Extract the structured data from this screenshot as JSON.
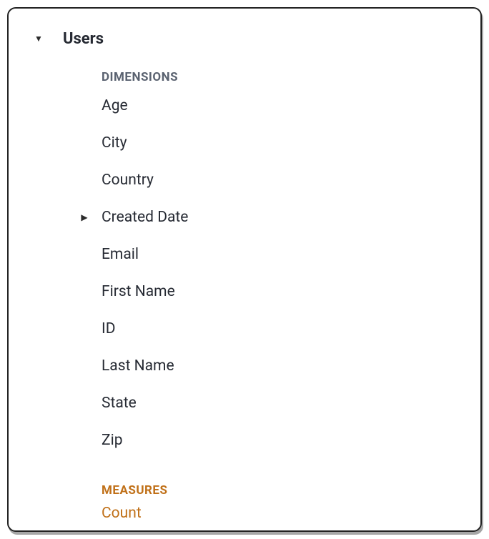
{
  "colors": {
    "border": "#222222",
    "background": "#ffffff",
    "text": "#262a33",
    "dimensions_header": "#5a6270",
    "measures_color": "#c07018"
  },
  "view": {
    "label": "Users",
    "expanded": true
  },
  "sections": {
    "dimensions": {
      "header": "DIMENSIONS",
      "fields": [
        {
          "label": "Age",
          "expandable": false
        },
        {
          "label": "City",
          "expandable": false
        },
        {
          "label": "Country",
          "expandable": false
        },
        {
          "label": "Created Date",
          "expandable": true,
          "expanded": false
        },
        {
          "label": "Email",
          "expandable": false
        },
        {
          "label": "First Name",
          "expandable": false
        },
        {
          "label": "ID",
          "expandable": false
        },
        {
          "label": "Last Name",
          "expandable": false
        },
        {
          "label": "State",
          "expandable": false
        },
        {
          "label": "Zip",
          "expandable": false
        }
      ]
    },
    "measures": {
      "header": "MEASURES",
      "fields": [
        {
          "label": "Count",
          "expandable": false
        }
      ]
    }
  }
}
